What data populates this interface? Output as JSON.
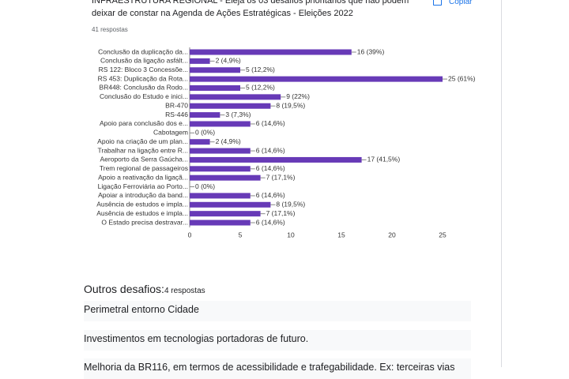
{
  "header": {
    "title": "INFRAESTRUTURA REGIONAL - Eleja os 03 desafios prioritários que não podem deixar de constar na Agenda de Ações Estratégicas - Eleições 2022",
    "responses": "41 respostas",
    "copy": "Copiar"
  },
  "chart_data": {
    "type": "hbar",
    "categories": [
      "Conclusão da duplicação da...",
      "Conclusão da ligação asfált...",
      "RS 122: Bloco 3 Concessõe...",
      "RS 453: Duplicação da Rota...",
      "BR448: Conclusão da Rodo...",
      "Conclusão do Estudo e inici...",
      "BR-470",
      "RS-446",
      "Apoio para conclusão dos e...",
      "Cabotagem",
      "Apoio na criação de um plan...",
      "Trabalhar na ligação entre R...",
      "Aeroporto da Serra Gaúcha...",
      "Trem regional de passageiros",
      "Apoio a reativação da ligaçã...",
      "Ligação Ferroviária ao Porto...",
      "Apoiar a introdução da band...",
      "Ausência de estudos e impla...",
      "Ausência de estudos e impla...",
      "O Estado precisa destravar..."
    ],
    "values": [
      16,
      2,
      5,
      25,
      5,
      9,
      8,
      3,
      6,
      0,
      2,
      6,
      17,
      6,
      7,
      0,
      6,
      8,
      7,
      6
    ],
    "value_labels": [
      "16 (39%)",
      "2 (4,9%)",
      "5 (12,2%)",
      "25 (61%)",
      "5 (12,2%)",
      "9 (22%)",
      "8 (19,5%)",
      "3 (7,3%)",
      "6 (14,6%)",
      "0 (0%)",
      "2 (4,9%)",
      "6 (14,6%)",
      "17 (41,5%)",
      "6 (14,6%)",
      "7 (17,1%)",
      "0 (0%)",
      "6 (14,6%)",
      "8 (19,5%)",
      "7 (17,1%)",
      "6 (14,6%)"
    ],
    "color": "#673ab7",
    "xlim": [
      0,
      25
    ],
    "xticks": [
      0,
      5,
      10,
      15,
      20,
      25
    ],
    "grid": false
  },
  "other": {
    "title": "Outros desafios:",
    "responses": "4 respostas",
    "answers": [
      "Perimetral entorno Cidade",
      "Investimentos em tecnologias portadoras de futuro.",
      "Melhoria da BR116, em termos de acessibilidade e trafegabilidade. Ex: terceiras vias"
    ]
  }
}
